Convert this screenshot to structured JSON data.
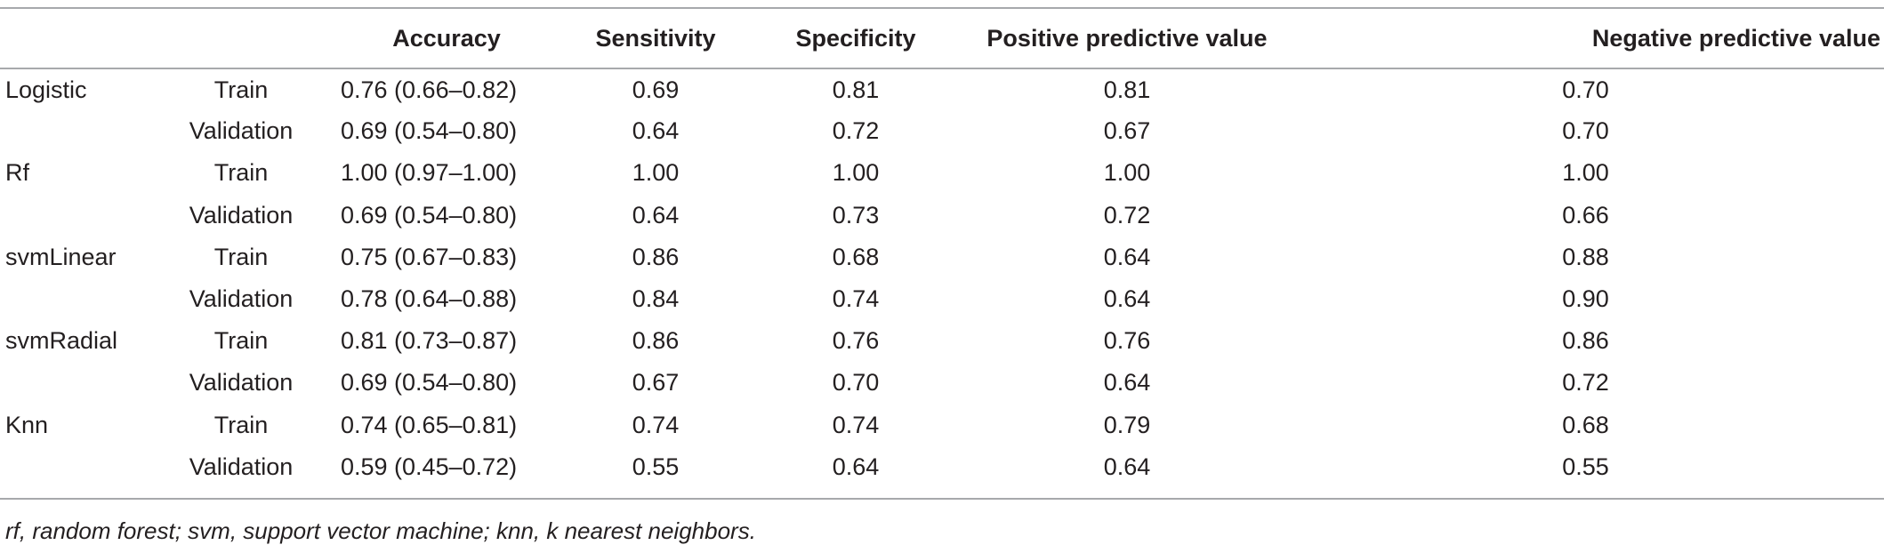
{
  "table": {
    "headers": [
      "",
      "",
      "Accuracy",
      "Sensitivity",
      "Specificity",
      "Positive predictive value",
      "Negative predictive value"
    ],
    "rows": [
      {
        "model": "Logistic",
        "set": "Train",
        "accuracy": "0.76 (0.66–0.82)",
        "sensitivity": "0.69",
        "specificity": "0.81",
        "ppv": "0.81",
        "npv": "0.70"
      },
      {
        "model": "",
        "set": "Validation",
        "accuracy": "0.69 (0.54–0.80)",
        "sensitivity": "0.64",
        "specificity": "0.72",
        "ppv": "0.67",
        "npv": "0.70"
      },
      {
        "model": "Rf",
        "set": "Train",
        "accuracy": "1.00 (0.97–1.00)",
        "sensitivity": "1.00",
        "specificity": "1.00",
        "ppv": "1.00",
        "npv": "1.00"
      },
      {
        "model": "",
        "set": "Validation",
        "accuracy": "0.69 (0.54–0.80)",
        "sensitivity": "0.64",
        "specificity": "0.73",
        "ppv": "0.72",
        "npv": "0.66"
      },
      {
        "model": "svmLinear",
        "set": "Train",
        "accuracy": "0.75 (0.67–0.83)",
        "sensitivity": "0.86",
        "specificity": "0.68",
        "ppv": "0.64",
        "npv": "0.88"
      },
      {
        "model": "",
        "set": "Validation",
        "accuracy": "0.78 (0.64–0.88)",
        "sensitivity": "0.84",
        "specificity": "0.74",
        "ppv": "0.64",
        "npv": "0.90"
      },
      {
        "model": "svmRadial",
        "set": "Train",
        "accuracy": "0.81 (0.73–0.87)",
        "sensitivity": "0.86",
        "specificity": "0.76",
        "ppv": "0.76",
        "npv": "0.86"
      },
      {
        "model": "",
        "set": "Validation",
        "accuracy": "0.69 (0.54–0.80)",
        "sensitivity": "0.67",
        "specificity": "0.70",
        "ppv": "0.64",
        "npv": "0.72"
      },
      {
        "model": "Knn",
        "set": "Train",
        "accuracy": "0.74 (0.65–0.81)",
        "sensitivity": "0.74",
        "specificity": "0.74",
        "ppv": "0.79",
        "npv": "0.68"
      },
      {
        "model": "",
        "set": "Validation",
        "accuracy": "0.59 (0.45–0.72)",
        "sensitivity": "0.55",
        "specificity": "0.64",
        "ppv": "0.64",
        "npv": "0.55"
      }
    ],
    "footnote": "rf, random forest; svm, support vector machine; knn, k nearest neighbors."
  }
}
